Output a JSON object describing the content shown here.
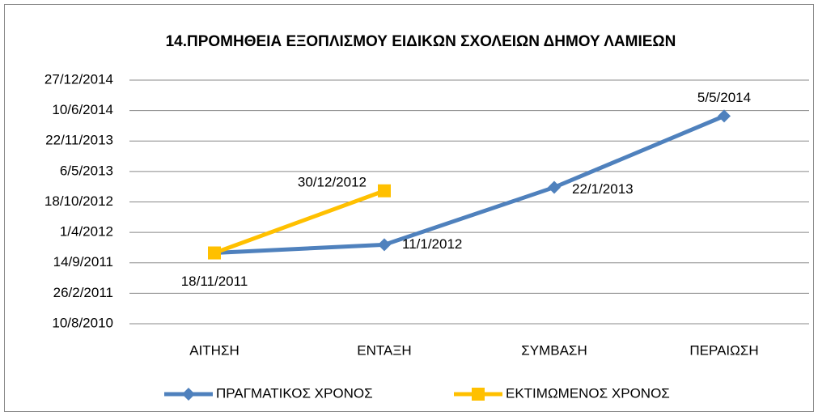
{
  "chart_data": {
    "type": "line",
    "title": "14.ΠΡΟΜΗΘΕΙΑ ΕΞΟΠΛΙΣΜΟΥ ΕΙΔΙΚΩΝ ΣΧΟΛΕΙΩΝ ΔΗΜΟΥ ΛΑΜΙΕΩΝ",
    "categories": [
      "ΑΙΤΗΣΗ",
      "ΕΝΤΑΞΗ",
      "ΣΥΜΒΑΣΗ",
      "ΠΕΡΑΙΩΣΗ"
    ],
    "series": [
      {
        "name": "ΠΡΑΓΜΑΤΙΚΟΣ ΧΡΟΝΟΣ",
        "color": "#4f81bd",
        "marker": "diamond",
        "values": [
          40865,
          40919,
          41296,
          41764
        ],
        "value_labels": [
          "18/11/2011",
          "11/1/2012",
          "22/1/2013",
          "5/5/2014"
        ]
      },
      {
        "name": "ΕΚΤΙΜΩΜΕΝΟΣ ΧΡΟΝΟΣ",
        "color": "#ffc000",
        "marker": "square",
        "values": [
          40865,
          41273,
          null,
          null
        ],
        "value_labels": [
          null,
          "30/12/2012",
          null,
          null
        ]
      }
    ],
    "ylim": [
      40400,
      42000
    ],
    "yticks": [
      {
        "value": 40400,
        "label": "10/8/2010"
      },
      {
        "value": 40600,
        "label": "26/2/2011"
      },
      {
        "value": 40800,
        "label": "14/9/2011"
      },
      {
        "value": 41000,
        "label": "1/4/2012"
      },
      {
        "value": 41200,
        "label": "18/10/2012"
      },
      {
        "value": 41400,
        "label": "6/5/2013"
      },
      {
        "value": 41600,
        "label": "22/11/2013"
      },
      {
        "value": 41800,
        "label": "10/6/2014"
      },
      {
        "value": 42000,
        "label": "27/12/2014"
      }
    ],
    "grid": true,
    "legend": "bottom"
  }
}
